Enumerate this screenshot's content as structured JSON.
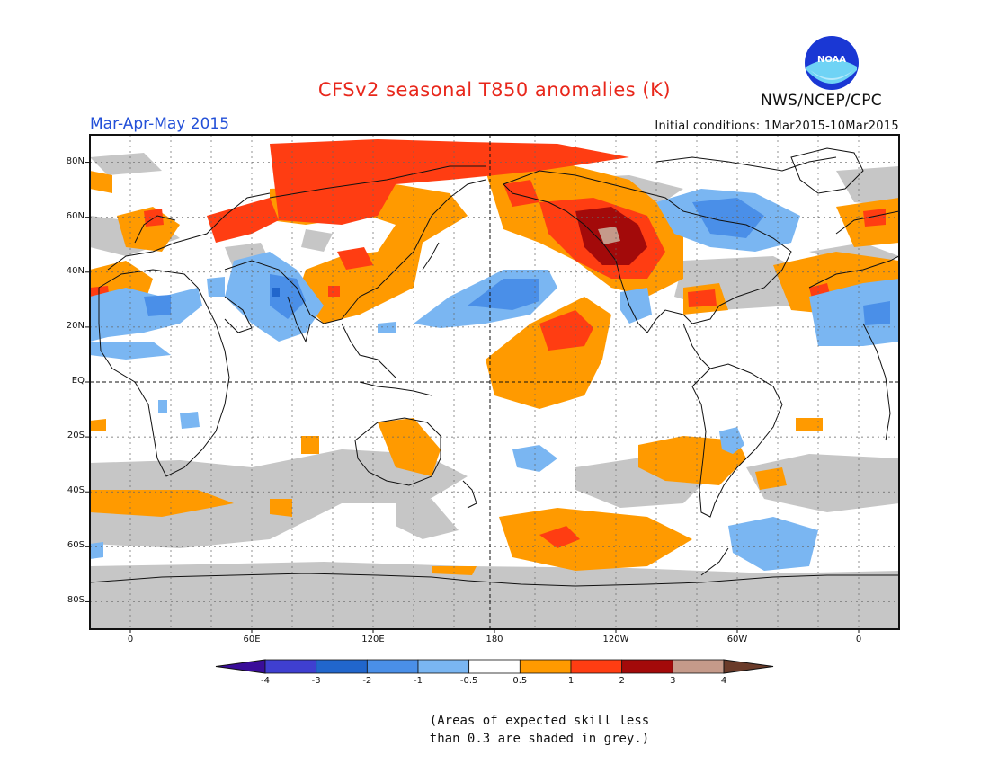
{
  "title": "CFSv2 seasonal T850 anomalies (K)",
  "season": "Mar-Apr-May 2015",
  "initial_conditions": "Initial conditions: 1Mar2015-10Mar2015",
  "agency": "NWS/NCEP/CPC",
  "logo_text": "NOAA",
  "lat_labels": [
    "80N",
    "60N",
    "40N",
    "20N",
    "EQ",
    "20S",
    "40S",
    "60S",
    "80S"
  ],
  "lon_labels": [
    "0",
    "60E",
    "120E",
    "180",
    "120W",
    "60W",
    "0"
  ],
  "colorbar": {
    "ticks": [
      "-4",
      "-3",
      "-2",
      "-1",
      "-0.5",
      "0.5",
      "1",
      "2",
      "3",
      "4"
    ],
    "colors": [
      "#3a0d99",
      "#3f3fd0",
      "#2166cc",
      "#4a8fe8",
      "#7ab6f2",
      "#ffffff",
      "#ff9a00",
      "#ff3d12",
      "#a30a0a",
      "#c59a8a",
      "#6a3b2a"
    ]
  },
  "skill_note": "(Areas of expected skill less than 0.3 are shaded in grey.)",
  "colors": {
    "title": "#e8271b",
    "season": "#2350d8",
    "skill_grey": "#c6c6c6"
  },
  "map": {
    "projection": "cylindrical equidistant",
    "lon_range": [
      -20,
      380
    ],
    "lat_range": [
      -90,
      90
    ],
    "dateline_marker": "dashed",
    "gridlines": "dotted"
  }
}
